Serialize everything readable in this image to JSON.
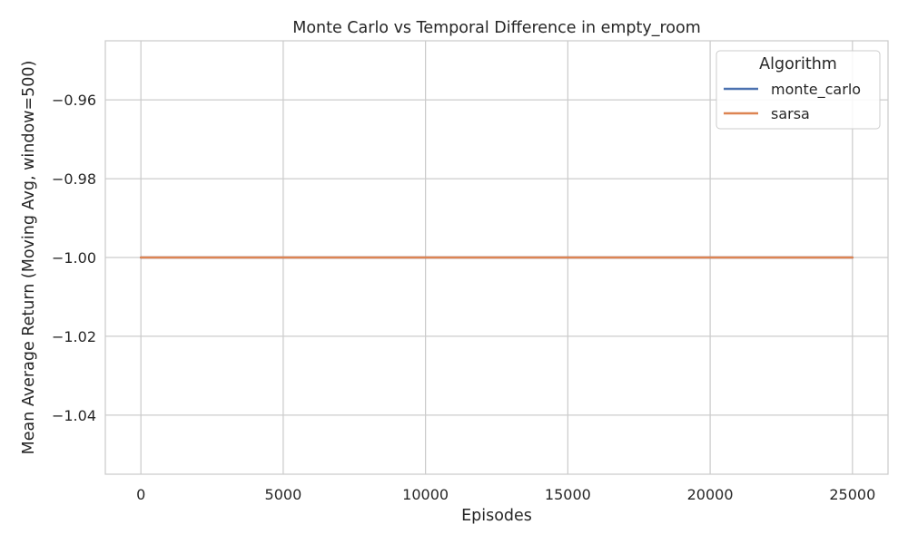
{
  "chart_data": {
    "type": "line",
    "title": "Monte Carlo vs Temporal Difference in empty_room",
    "xlabel": "Episodes",
    "ylabel": "Mean Average Return (Moving Avg, window=500)",
    "xlim": [
      -1250,
      26250
    ],
    "ylim": [
      -1.055,
      -0.945
    ],
    "xticks": [
      0,
      5000,
      10000,
      15000,
      20000,
      25000
    ],
    "xtick_labels": [
      "0",
      "5000",
      "10000",
      "15000",
      "20000",
      "25000"
    ],
    "yticks": [
      -1.04,
      -1.02,
      -1.0,
      -0.98,
      -0.96
    ],
    "ytick_labels": [
      "−1.04",
      "−1.02",
      "−1.00",
      "−0.98",
      "−0.96"
    ],
    "grid": true,
    "legend": {
      "title": "Algorithm",
      "placement": "top-right"
    },
    "series": [
      {
        "name": "monte_carlo",
        "color": "#4c72b0",
        "x": [
          0,
          25000
        ],
        "y": [
          -1.0,
          -1.0
        ]
      },
      {
        "name": "sarsa",
        "color": "#dd8452",
        "x": [
          0,
          25000
        ],
        "y": [
          -1.0,
          -1.0
        ]
      }
    ]
  }
}
